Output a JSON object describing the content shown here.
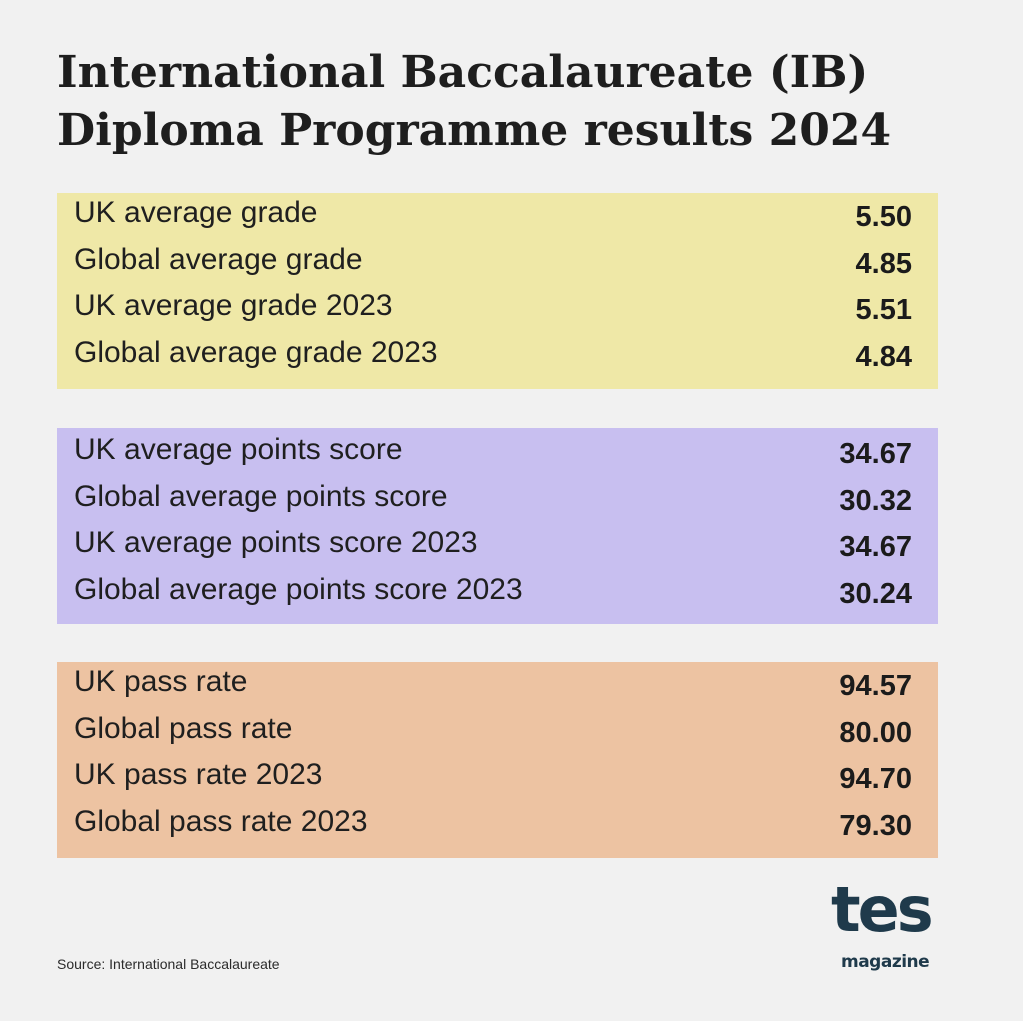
{
  "title": {
    "line1": "International Baccalaureate (IB)",
    "line2": "Diploma Programme results 2024"
  },
  "panels": {
    "grades": {
      "color": "#efe8a7",
      "rows": [
        {
          "label": "UK average grade",
          "value": "5.50"
        },
        {
          "label": "Global average grade",
          "value": "4.85"
        },
        {
          "label": "UK average grade 2023",
          "value": "5.51"
        },
        {
          "label": "Global average grade 2023",
          "value": "4.84"
        }
      ]
    },
    "points": {
      "color": "#c8bff0",
      "rows": [
        {
          "label": "UK average points score",
          "value": "34.67"
        },
        {
          "label": "Global average points score",
          "value": "30.32"
        },
        {
          "label": "UK average points score 2023",
          "value": "34.67"
        },
        {
          "label": "Global average points score 2023",
          "value": "30.24"
        }
      ]
    },
    "pass": {
      "color": "#edc3a2",
      "rows": [
        {
          "label": "UK pass rate",
          "value": "94.57"
        },
        {
          "label": "Global pass rate",
          "value": "80.00"
        },
        {
          "label": "UK pass rate 2023",
          "value": "94.70"
        },
        {
          "label": "Global pass rate 2023",
          "value": "79.30"
        }
      ]
    }
  },
  "source": "Source: International Baccalaureate",
  "logo": {
    "word": "tes",
    "sub": "magazine",
    "color": "#1f3a4b"
  }
}
